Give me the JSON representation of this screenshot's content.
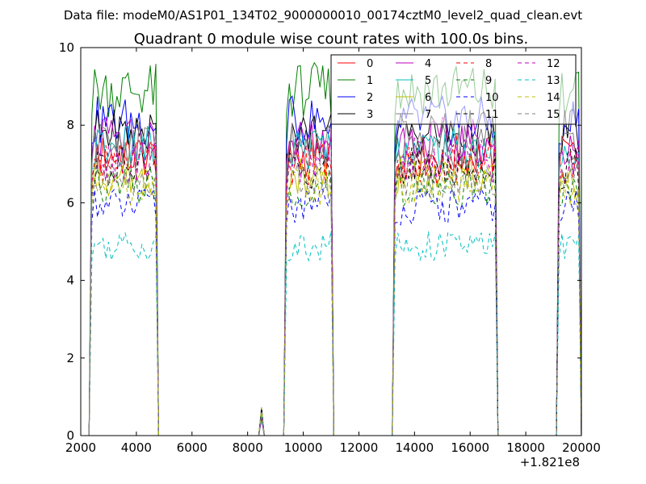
{
  "header": "Data file: modeM0/AS1P01_134T02_9000000010_00174cztM0_level2_quad_clean.evt",
  "chart_data": {
    "type": "line",
    "title": "Quadrant 0 module wise count rates with 100.0s bins.",
    "xlabel": "",
    "ylabel": "",
    "x_offset_label": "+1.821e8",
    "xlim": [
      2000,
      20000
    ],
    "ylim": [
      0,
      10
    ],
    "x_ticks": [
      2000,
      4000,
      6000,
      8000,
      10000,
      12000,
      14000,
      16000,
      18000,
      20000
    ],
    "y_ticks": [
      0,
      2,
      4,
      6,
      8,
      10
    ],
    "x_tick_labels": [
      "2000",
      "4000",
      "6000",
      "8000",
      "10000",
      "12000",
      "14000",
      "16000",
      "18000",
      "20000"
    ],
    "y_tick_labels": [
      "0",
      "2",
      "4",
      "6",
      "8",
      "10"
    ],
    "grid": false,
    "legend_position": "top-right",
    "legend_columns": 4,
    "x_step": 100,
    "segments": [
      {
        "x_start": 2400,
        "x_end": 4700
      },
      {
        "x_start": 9400,
        "x_end": 11000
      },
      {
        "x_start": 13300,
        "x_end": 16900
      },
      {
        "x_start": 19200,
        "x_end": 19900
      }
    ],
    "spike": {
      "x": 8500,
      "peak": 0.75
    },
    "series": [
      {
        "name": "0",
        "color": "#ff0000",
        "dash": "solid",
        "level": 7.2
      },
      {
        "name": "1",
        "color": "#008000",
        "dash": "solid",
        "level": 8.9
      },
      {
        "name": "2",
        "color": "#0000ff",
        "dash": "solid",
        "level": 8.1
      },
      {
        "name": "3",
        "color": "#000000",
        "dash": "solid",
        "level": 7.8
      },
      {
        "name": "4",
        "color": "#bf00bf",
        "dash": "solid",
        "level": 7.6
      },
      {
        "name": "5",
        "color": "#00bfbf",
        "dash": "solid",
        "level": 7.4
      },
      {
        "name": "6",
        "color": "#bfbf00",
        "dash": "solid",
        "level": 6.7
      },
      {
        "name": "7",
        "color": "#808080",
        "dash": "solid",
        "level": 7.5
      },
      {
        "name": "8",
        "color": "#ff0000",
        "dash": "dashed",
        "level": 7.0
      },
      {
        "name": "9",
        "color": "#008000",
        "dash": "dashed",
        "level": 6.4
      },
      {
        "name": "10",
        "color": "#0000ff",
        "dash": "dashed",
        "level": 5.9
      },
      {
        "name": "11",
        "color": "#000000",
        "dash": "dashed",
        "level": 6.9
      },
      {
        "name": "12",
        "color": "#bf00bf",
        "dash": "dashed",
        "level": 7.1
      },
      {
        "name": "13",
        "color": "#00bfbf",
        "dash": "dashed",
        "level": 4.9
      },
      {
        "name": "14",
        "color": "#bfbf00",
        "dash": "dashed",
        "level": 6.4
      },
      {
        "name": "15",
        "color": "#808080",
        "dash": "dashed",
        "level": 6.6
      }
    ]
  }
}
